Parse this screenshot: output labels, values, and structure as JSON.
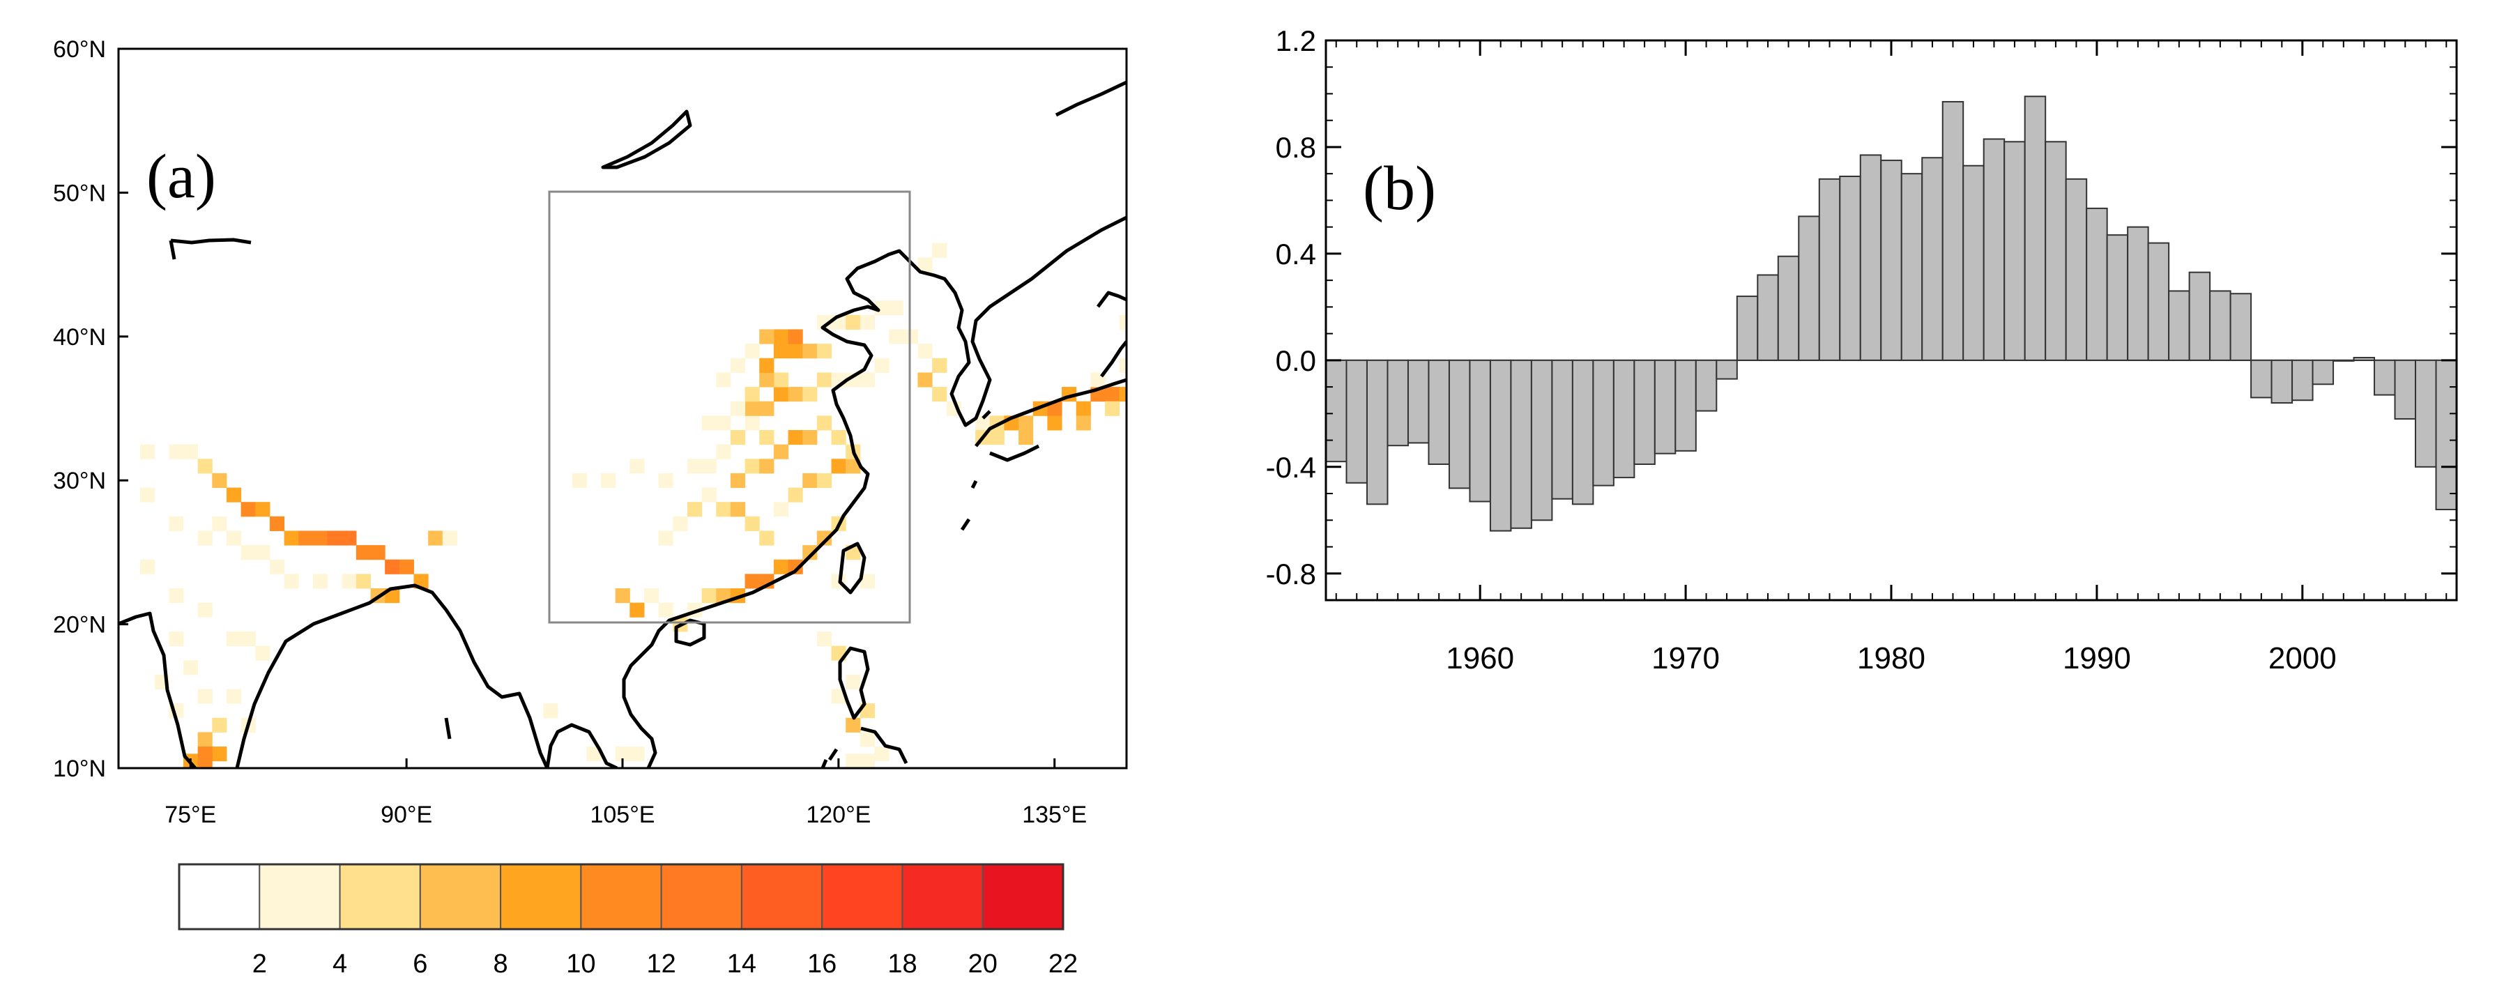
{
  "chart_data": [
    {
      "type": "heatmap",
      "panel_label": "(a)",
      "title": "",
      "lat_ticks": [
        "60°N",
        "50°N",
        "40°N",
        "30°N",
        "20°N",
        "10°N"
      ],
      "lon_ticks": [
        "75°E",
        "90°E",
        "105°E",
        "120°E",
        "135°E"
      ],
      "xlim": [
        70,
        140
      ],
      "ylim": [
        10,
        60
      ],
      "box_region": {
        "lon": [
          100,
          125
        ],
        "lat": [
          20,
          50
        ]
      },
      "colorbar": {
        "levels": [
          "2",
          "4",
          "6",
          "8",
          "10",
          "12",
          "14",
          "16",
          "18",
          "20",
          "22"
        ],
        "colors": [
          "#ffffff",
          "#fff6d8",
          "#ffe08c",
          "#ffbe50",
          "#ffa520",
          "#ff8a22",
          "#ff7a22",
          "#ff5e22",
          "#ff4422",
          "#f52a22",
          "#e8141f"
        ]
      },
      "cells": [
        [
          70.5,
          33,
          1
        ],
        [
          71,
          30,
          1
        ],
        [
          72,
          32,
          2
        ],
        [
          73,
          31,
          1
        ],
        [
          74,
          32,
          3
        ],
        [
          75,
          32,
          2
        ],
        [
          76,
          31,
          5
        ],
        [
          77,
          30,
          6
        ],
        [
          78,
          29,
          8
        ],
        [
          79,
          28,
          10
        ],
        [
          80,
          28,
          9
        ],
        [
          81,
          27,
          10
        ],
        [
          82,
          26,
          9
        ],
        [
          83,
          26,
          10
        ],
        [
          84,
          26,
          11
        ],
        [
          85,
          26,
          12
        ],
        [
          86,
          26,
          12
        ],
        [
          87,
          25,
          11
        ],
        [
          88,
          25,
          10
        ],
        [
          89,
          24,
          12
        ],
        [
          90,
          24,
          11
        ],
        [
          91,
          23,
          8
        ],
        [
          92,
          26,
          6
        ],
        [
          93,
          26,
          3
        ],
        [
          94,
          27,
          1
        ],
        [
          95,
          27,
          1
        ],
        [
          72,
          29,
          2
        ],
        [
          73,
          28,
          1
        ],
        [
          74,
          27,
          2
        ],
        [
          75,
          27,
          1
        ],
        [
          76,
          26,
          2
        ],
        [
          77,
          27,
          3
        ],
        [
          78,
          26,
          2
        ],
        [
          79,
          25,
          3
        ],
        [
          80,
          25,
          2
        ],
        [
          81,
          24,
          3
        ],
        [
          82,
          23,
          2
        ],
        [
          83,
          24,
          1
        ],
        [
          84,
          23,
          2
        ],
        [
          85,
          22,
          1
        ],
        [
          86,
          23,
          3
        ],
        [
          87,
          23,
          5
        ],
        [
          88,
          22,
          6
        ],
        [
          89,
          22,
          8
        ],
        [
          71,
          24,
          1
        ],
        [
          72,
          24,
          2
        ],
        [
          73,
          23,
          1
        ],
        [
          74,
          22,
          2
        ],
        [
          75,
          21,
          1
        ],
        [
          76,
          21,
          2
        ],
        [
          77,
          20,
          1
        ],
        [
          78,
          19,
          2
        ],
        [
          79,
          19,
          3
        ],
        [
          80,
          18,
          2
        ],
        [
          81,
          17,
          1
        ],
        [
          74,
          19,
          3
        ],
        [
          75,
          17,
          2
        ],
        [
          76,
          15,
          3
        ],
        [
          77,
          13,
          4
        ],
        [
          76,
          12,
          6
        ],
        [
          77,
          11,
          8
        ],
        [
          76,
          11,
          11
        ],
        [
          75,
          10.5,
          9
        ],
        [
          76,
          10.5,
          10
        ],
        [
          74,
          14,
          3
        ],
        [
          73,
          16,
          2
        ],
        [
          78,
          15,
          2
        ],
        [
          79,
          13,
          2
        ],
        [
          80,
          12,
          1
        ],
        [
          77,
          16,
          1
        ],
        [
          72,
          40,
          1
        ],
        [
          73,
          41,
          1
        ],
        [
          75,
          40,
          1
        ],
        [
          105,
          22,
          7
        ],
        [
          106,
          21,
          8
        ],
        [
          107,
          22,
          3
        ],
        [
          108,
          21,
          2
        ],
        [
          109,
          20,
          4
        ],
        [
          110,
          21,
          3
        ],
        [
          111,
          22,
          5
        ],
        [
          112,
          22,
          7
        ],
        [
          113,
          22,
          8
        ],
        [
          114,
          23,
          11
        ],
        [
          115,
          23,
          10
        ],
        [
          116,
          24,
          8
        ],
        [
          117,
          24,
          10
        ],
        [
          118,
          25,
          7
        ],
        [
          119,
          26,
          6
        ],
        [
          120,
          27,
          5
        ],
        [
          121,
          25,
          4
        ],
        [
          120,
          23,
          2
        ],
        [
          121,
          23,
          1
        ],
        [
          122,
          23,
          3
        ],
        [
          107,
          25,
          1
        ],
        [
          108,
          26,
          2
        ],
        [
          109,
          27,
          3
        ],
        [
          110,
          28,
          4
        ],
        [
          111,
          29,
          2
        ],
        [
          112,
          28,
          5
        ],
        [
          113,
          28,
          6
        ],
        [
          114,
          27,
          4
        ],
        [
          115,
          26,
          5
        ],
        [
          116,
          28,
          2
        ],
        [
          117,
          29,
          5
        ],
        [
          118,
          30,
          6
        ],
        [
          119,
          30,
          4
        ],
        [
          120,
          31,
          9
        ],
        [
          121,
          31,
          7
        ],
        [
          121,
          32,
          4
        ],
        [
          113,
          30,
          6
        ],
        [
          114,
          31,
          5
        ],
        [
          115,
          31,
          6
        ],
        [
          116,
          32,
          6
        ],
        [
          117,
          33,
          8
        ],
        [
          118,
          33,
          6
        ],
        [
          119,
          34,
          5
        ],
        [
          120,
          33,
          4
        ],
        [
          115,
          33,
          4
        ],
        [
          114,
          34,
          3
        ],
        [
          113,
          33,
          5
        ],
        [
          112,
          32,
          3
        ],
        [
          111,
          31,
          2
        ],
        [
          110,
          31,
          2
        ],
        [
          109,
          30,
          1
        ],
        [
          108,
          30,
          2
        ],
        [
          106,
          31,
          2
        ],
        [
          104,
          30,
          2
        ],
        [
          103,
          31,
          1
        ],
        [
          102,
          30,
          2
        ],
        [
          101,
          29,
          1
        ],
        [
          103,
          28,
          1
        ],
        [
          114,
          35,
          6
        ],
        [
          115,
          35,
          7
        ],
        [
          116,
          36,
          8
        ],
        [
          117,
          36,
          6
        ],
        [
          118,
          36,
          5
        ],
        [
          119,
          37,
          4
        ],
        [
          120,
          37,
          3
        ],
        [
          116,
          37,
          5
        ],
        [
          115,
          37,
          6
        ],
        [
          114,
          36,
          4
        ],
        [
          113,
          35,
          3
        ],
        [
          112,
          34,
          2
        ],
        [
          111,
          34,
          2
        ],
        [
          110,
          35,
          1
        ],
        [
          109,
          34,
          1
        ],
        [
          108,
          35,
          1
        ],
        [
          107,
          35,
          1
        ],
        [
          104,
          36,
          1
        ],
        [
          102,
          36,
          1
        ],
        [
          115,
          38,
          8
        ],
        [
          116,
          39,
          9
        ],
        [
          117,
          39,
          8
        ],
        [
          118,
          39,
          6
        ],
        [
          119,
          39,
          4
        ],
        [
          116,
          40,
          9
        ],
        [
          117,
          40,
          10
        ],
        [
          115,
          40,
          6
        ],
        [
          114,
          39,
          3
        ],
        [
          113,
          38,
          2
        ],
        [
          112,
          37,
          2
        ],
        [
          111,
          38,
          1
        ],
        [
          119,
          41,
          3
        ],
        [
          120,
          41,
          2
        ],
        [
          121,
          41,
          4
        ],
        [
          122,
          41,
          3
        ],
        [
          123,
          42,
          3
        ],
        [
          124,
          42,
          2
        ],
        [
          125,
          42,
          1
        ],
        [
          124,
          40,
          3
        ],
        [
          125,
          40,
          2
        ],
        [
          126,
          39,
          2
        ],
        [
          127,
          38,
          4
        ],
        [
          126,
          37,
          6
        ],
        [
          127,
          36,
          5
        ],
        [
          128,
          35,
          3
        ],
        [
          123,
          44,
          1
        ],
        [
          125,
          45,
          1
        ],
        [
          126,
          45,
          2
        ],
        [
          128,
          44,
          1
        ],
        [
          127,
          46,
          2
        ],
        [
          129,
          46,
          1
        ],
        [
          123,
          38,
          2
        ],
        [
          122,
          37,
          3
        ],
        [
          121,
          37,
          2
        ],
        [
          130,
          34,
          3
        ],
        [
          131,
          34,
          5
        ],
        [
          132,
          34,
          8
        ],
        [
          133,
          34,
          6
        ],
        [
          134,
          35,
          9
        ],
        [
          135,
          35,
          11
        ],
        [
          136,
          36,
          9
        ],
        [
          137,
          35,
          8
        ],
        [
          138,
          36,
          10
        ],
        [
          139,
          36,
          11
        ],
        [
          140,
          36,
          8
        ],
        [
          130,
          33,
          4
        ],
        [
          131,
          33,
          5
        ],
        [
          133,
          33,
          7
        ],
        [
          135,
          34,
          8
        ],
        [
          137,
          34,
          7
        ],
        [
          139,
          35,
          4
        ],
        [
          138,
          37,
          3
        ],
        [
          140,
          38,
          2
        ],
        [
          139,
          39,
          1
        ],
        [
          140,
          41,
          2
        ],
        [
          139,
          42,
          1
        ],
        [
          119,
          19,
          2
        ],
        [
          120,
          18,
          4
        ],
        [
          121,
          16,
          3
        ],
        [
          122,
          14,
          5
        ],
        [
          121,
          13,
          6
        ],
        [
          122,
          12,
          3
        ],
        [
          123,
          11,
          2
        ],
        [
          120,
          15,
          2
        ],
        [
          124,
          13,
          1
        ],
        [
          121,
          10.5,
          3
        ],
        [
          122,
          10.5,
          2
        ],
        [
          103,
          11,
          2
        ],
        [
          104,
          12,
          1
        ],
        [
          105,
          11,
          3
        ],
        [
          106,
          11,
          2
        ],
        [
          99,
          15,
          1
        ],
        [
          100,
          14,
          2
        ],
        [
          99,
          13,
          1
        ],
        [
          101,
          16,
          1
        ],
        [
          96,
          18,
          1
        ]
      ]
    },
    {
      "type": "bar",
      "panel_label": "(b)",
      "title": "",
      "xlabel": "",
      "ylabel": "",
      "xlim": [
        1952.5,
        2007.5
      ],
      "ylim": [
        -0.9,
        1.2
      ],
      "yticks": [
        "1.2",
        "0.8",
        "0.4",
        "0.0",
        "-0.4",
        "-0.8"
      ],
      "xticks": [
        "1960",
        "1970",
        "1980",
        "1990",
        "2000"
      ],
      "categories": [
        1953,
        1954,
        1955,
        1956,
        1957,
        1958,
        1959,
        1960,
        1961,
        1962,
        1963,
        1964,
        1965,
        1966,
        1967,
        1968,
        1969,
        1970,
        1971,
        1972,
        1973,
        1974,
        1975,
        1976,
        1977,
        1978,
        1979,
        1980,
        1981,
        1982,
        1983,
        1984,
        1985,
        1986,
        1987,
        1988,
        1989,
        1990,
        1991,
        1992,
        1993,
        1994,
        1995,
        1996,
        1997,
        1998,
        1999,
        2000,
        2001,
        2002,
        2003,
        2004,
        2005,
        2006,
        2007
      ],
      "values": [
        -0.38,
        -0.46,
        -0.54,
        -0.32,
        -0.31,
        -0.39,
        -0.48,
        -0.53,
        -0.64,
        -0.63,
        -0.6,
        -0.52,
        -0.54,
        -0.47,
        -0.44,
        -0.39,
        -0.35,
        -0.34,
        -0.19,
        -0.07,
        0.24,
        0.32,
        0.39,
        0.54,
        0.68,
        0.69,
        0.77,
        0.75,
        0.7,
        0.76,
        0.97,
        0.73,
        0.83,
        0.82,
        0.99,
        0.82,
        0.68,
        0.57,
        0.47,
        0.5,
        0.44,
        0.26,
        0.33,
        0.26,
        0.25,
        -0.14,
        -0.16,
        -0.15,
        -0.09,
        0.0,
        0.01,
        -0.13,
        -0.22,
        -0.4,
        -0.56
      ],
      "bar_color": "#bebebe"
    }
  ]
}
